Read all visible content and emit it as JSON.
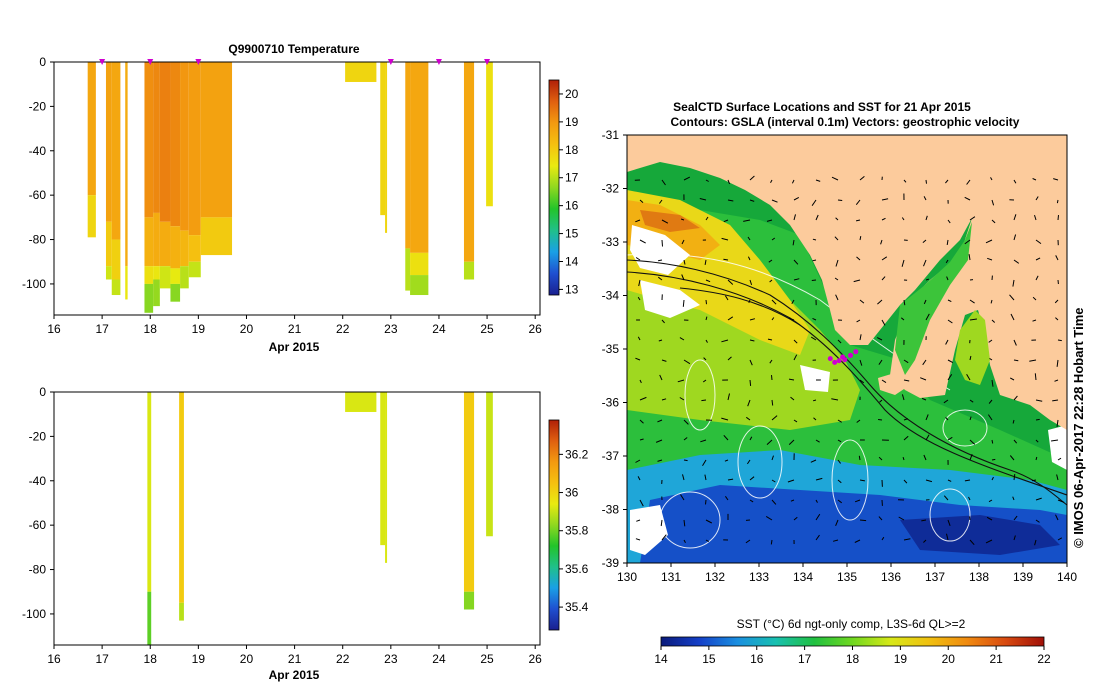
{
  "colors": {
    "land": "#FCCB9C",
    "nodata": "#FFFFFF",
    "marker": "#D000D0",
    "axis": "#000000",
    "temp_scale": [
      "#1a1f8f",
      "#1f4fd0",
      "#1aa0e6",
      "#20c08a",
      "#22c42a",
      "#8fd820",
      "#e9ea10",
      "#f5c010",
      "#f39a10",
      "#e06010",
      "#b02008"
    ],
    "sst_scale": [
      "#0a1a7a",
      "#1540c8",
      "#1a8fe0",
      "#18c0b0",
      "#20c040",
      "#70d820",
      "#d8e818",
      "#f0c010",
      "#f08a10",
      "#d84a10",
      "#a01008"
    ]
  },
  "chart_data": [
    {
      "id": "temperature",
      "type": "heatmap",
      "title": "Q9900710  Temperature",
      "xlabel": "Apr 2015",
      "xlim": [
        16,
        26.1
      ],
      "ylim": [
        -114,
        0
      ],
      "xticks": [
        "16",
        "17",
        "18",
        "19",
        "20",
        "21",
        "22",
        "23",
        "24",
        "25",
        "26"
      ],
      "yticks": [
        "0",
        "-20",
        "-40",
        "-60",
        "-80",
        "-100"
      ],
      "cbar_ticks": [
        "13",
        "14",
        "15",
        "16",
        "17",
        "18",
        "19",
        "20"
      ],
      "cbar_lim": [
        12.8,
        20.5
      ],
      "markers_x": [
        17.0,
        18.0,
        19.0,
        23.0,
        24.0,
        25.0
      ],
      "profiles": [
        {
          "x0": 16.7,
          "x1": 16.87,
          "depth": -79,
          "segs": [
            [
              0,
              -60,
              18.7
            ],
            [
              -60,
              -79,
              17.8
            ]
          ]
        },
        {
          "x0": 17.08,
          "x1": 17.2,
          "depth": -98,
          "segs": [
            [
              0,
              -72,
              18.8
            ],
            [
              -72,
              -92,
              18.0
            ],
            [
              -92,
              -98,
              17.2
            ]
          ]
        },
        {
          "x0": 17.2,
          "x1": 17.38,
          "depth": -105,
          "segs": [
            [
              0,
              -80,
              18.7
            ],
            [
              -80,
              -98,
              17.9
            ],
            [
              -98,
              -105,
              17.1
            ]
          ]
        },
        {
          "x0": 17.48,
          "x1": 17.53,
          "depth": -107,
          "segs": [
            [
              0,
              -92,
              18.6
            ],
            [
              -92,
              -107,
              17.5
            ]
          ]
        },
        {
          "x0": 17.88,
          "x1": 18.06,
          "depth": -113,
          "segs": [
            [
              0,
              -70,
              19.1
            ],
            [
              -70,
              -92,
              18.5
            ],
            [
              -92,
              -100,
              17.6
            ],
            [
              -100,
              -113,
              16.6
            ]
          ]
        },
        {
          "x0": 18.06,
          "x1": 18.2,
          "depth": -110,
          "segs": [
            [
              0,
              -68,
              19.2
            ],
            [
              -68,
              -92,
              18.6
            ],
            [
              -92,
              -98,
              17.5
            ],
            [
              -98,
              -110,
              16.7
            ]
          ]
        },
        {
          "x0": 18.2,
          "x1": 18.42,
          "depth": -102,
          "segs": [
            [
              0,
              -72,
              19.3
            ],
            [
              -72,
              -92,
              18.6
            ],
            [
              -92,
              -102,
              17.2
            ]
          ]
        },
        {
          "x0": 18.42,
          "x1": 18.62,
          "depth": -108,
          "segs": [
            [
              0,
              -74,
              19.2
            ],
            [
              -74,
              -93,
              18.5
            ],
            [
              -93,
              -100,
              17.4
            ],
            [
              -100,
              -108,
              16.6
            ]
          ]
        },
        {
          "x0": 18.62,
          "x1": 18.8,
          "depth": -102,
          "segs": [
            [
              0,
              -76,
              19.0
            ],
            [
              -76,
              -92,
              18.4
            ],
            [
              -92,
              -102,
              17.0
            ]
          ]
        },
        {
          "x0": 18.8,
          "x1": 19.05,
          "depth": -97,
          "segs": [
            [
              0,
              -78,
              18.9
            ],
            [
              -78,
              -90,
              18.2
            ],
            [
              -90,
              -97,
              17.1
            ]
          ]
        },
        {
          "x0": 19.05,
          "x1": 19.7,
          "depth": -87,
          "segs": [
            [
              0,
              -70,
              18.8
            ],
            [
              -70,
              -87,
              18.0
            ]
          ]
        },
        {
          "x0": 22.05,
          "x1": 22.7,
          "depth": -9,
          "segs": [
            [
              0,
              -9,
              17.8
            ]
          ]
        },
        {
          "x0": 22.78,
          "x1": 22.88,
          "depth": -69,
          "segs": [
            [
              0,
              -69,
              17.8
            ]
          ]
        },
        {
          "x0": 22.88,
          "x1": 22.92,
          "depth": -77,
          "segs": [
            [
              0,
              -77,
              17.8
            ]
          ]
        },
        {
          "x0": 23.3,
          "x1": 23.4,
          "depth": -103,
          "segs": [
            [
              0,
              -84,
              18.7
            ],
            [
              -84,
              -103,
              17.0
            ]
          ]
        },
        {
          "x0": 23.4,
          "x1": 23.78,
          "depth": -105,
          "segs": [
            [
              0,
              -86,
              18.7
            ],
            [
              -86,
              -96,
              17.6
            ],
            [
              -96,
              -105,
              16.8
            ]
          ]
        },
        {
          "x0": 24.52,
          "x1": 24.73,
          "depth": -98,
          "segs": [
            [
              0,
              -90,
              18.7
            ],
            [
              -90,
              -98,
              17.0
            ]
          ]
        },
        {
          "x0": 24.98,
          "x1": 25.12,
          "depth": -65,
          "segs": [
            [
              0,
              -65,
              17.6
            ]
          ]
        }
      ]
    },
    {
      "id": "salinity",
      "type": "heatmap",
      "title": "",
      "xlabel": "Apr 2015",
      "xlim": [
        16,
        26.1
      ],
      "ylim": [
        -114,
        0
      ],
      "xticks": [
        "16",
        "17",
        "18",
        "19",
        "20",
        "21",
        "22",
        "23",
        "24",
        "25",
        "26"
      ],
      "yticks": [
        "0",
        "-20",
        "-40",
        "-60",
        "-80",
        "-100"
      ],
      "cbar_ticks": [
        "35.4",
        "35.6",
        "35.8",
        "36",
        "36.2"
      ],
      "cbar_lim": [
        35.28,
        36.38
      ],
      "profiles": [
        {
          "x0": 17.94,
          "x1": 18.02,
          "depth": -114,
          "segs": [
            [
              0,
              -90,
              35.92
            ],
            [
              -90,
              -114,
              35.78
            ]
          ]
        },
        {
          "x0": 18.6,
          "x1": 18.7,
          "depth": -103,
          "segs": [
            [
              0,
              -95,
              36.02
            ],
            [
              -95,
              -103,
              35.88
            ]
          ]
        },
        {
          "x0": 22.05,
          "x1": 22.7,
          "depth": -9,
          "segs": [
            [
              0,
              -9,
              35.92
            ]
          ]
        },
        {
          "x0": 22.78,
          "x1": 22.88,
          "depth": -69,
          "segs": [
            [
              0,
              -69,
              35.92
            ]
          ]
        },
        {
          "x0": 22.88,
          "x1": 22.92,
          "depth": -77,
          "segs": [
            [
              0,
              -77,
              35.92
            ]
          ]
        },
        {
          "x0": 24.52,
          "x1": 24.73,
          "depth": -98,
          "segs": [
            [
              0,
              -90,
              36.02
            ],
            [
              -90,
              -98,
              35.82
            ]
          ]
        },
        {
          "x0": 24.98,
          "x1": 25.12,
          "depth": -65,
          "segs": [
            [
              0,
              -65,
              35.9
            ]
          ]
        }
      ]
    },
    {
      "id": "sst_map",
      "type": "heatmap",
      "title": "SealCTD Surface Locations and SST for 21 Apr 2015",
      "subtitle": "Contours: GSLA (interval 0.1m) Vectors: geostrophic velocity",
      "xlim": [
        130,
        140
      ],
      "ylim": [
        -39,
        -31
      ],
      "xticks": [
        "130",
        "131",
        "132",
        "133",
        "134",
        "135",
        "136",
        "137",
        "138",
        "139",
        "140"
      ],
      "yticks": [
        "-31",
        "-32",
        "-33",
        "-34",
        "-35",
        "-36",
        "-37",
        "-38",
        "-39"
      ],
      "colorbar_label": "SST (°C) 6d ngt-only comp, L3S-6d QL>=2",
      "cbar_ticks": [
        "14",
        "15",
        "16",
        "17",
        "18",
        "19",
        "20",
        "21",
        "22"
      ],
      "cbar_lim": [
        14,
        22
      ],
      "credit": "© IMOS 06-Apr-2017 22:28 Hobart Time",
      "seal_track": [
        [
          134.62,
          -35.18
        ],
        [
          134.72,
          -35.25
        ],
        [
          134.82,
          -35.22
        ],
        [
          134.95,
          -35.2
        ],
        [
          135.08,
          -35.12
        ],
        [
          135.2,
          -35.05
        ],
        [
          134.9,
          -35.15
        ]
      ]
    }
  ]
}
